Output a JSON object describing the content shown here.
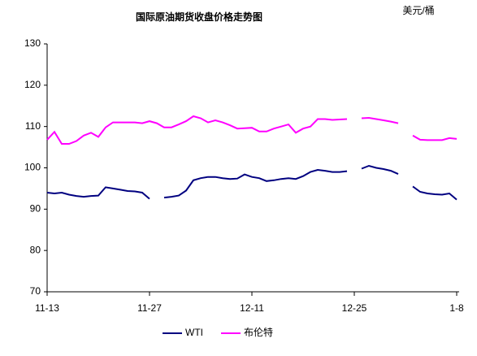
{
  "chart_data": {
    "type": "line",
    "title": "国际原油期货收盘价格走势图",
    "unit_label": "美元/桶",
    "categories": [
      "11-13",
      null,
      null,
      null,
      null,
      null,
      null,
      null,
      null,
      null,
      null,
      null,
      null,
      null,
      "11-27",
      null,
      null,
      null,
      null,
      null,
      null,
      null,
      null,
      null,
      null,
      null,
      null,
      null,
      "12-11",
      null,
      null,
      null,
      null,
      null,
      null,
      null,
      null,
      null,
      null,
      null,
      null,
      null,
      "12-25",
      null,
      null,
      null,
      null,
      null,
      null,
      null,
      null,
      null,
      null,
      null,
      null,
      null,
      "1-8"
    ],
    "series": [
      {
        "name": "WTI",
        "color": "#000080",
        "values": [
          94,
          93.8,
          94,
          93.5,
          93.2,
          93,
          93.2,
          93.3,
          95.3,
          95,
          94.7,
          94.4,
          94.3,
          94,
          92.5,
          null,
          92.8,
          93,
          93.3,
          94.5,
          97,
          97.5,
          97.8,
          97.8,
          97.5,
          97.3,
          97.4,
          98.4,
          97.8,
          97.5,
          96.8,
          97,
          97.3,
          97.5,
          97.3,
          98,
          99,
          99.5,
          99.3,
          99,
          99,
          99.2,
          null,
          99.8,
          100.5,
          100,
          99.7,
          99.3,
          98.5,
          null,
          95.5,
          94.2,
          93.8,
          93.6,
          93.5,
          93.8,
          92.3
        ]
      },
      {
        "name": "布伦特",
        "color": "#ff00ff",
        "values": [
          106.8,
          108.7,
          105.8,
          105.8,
          106.5,
          107.8,
          108.5,
          107.5,
          109.8,
          111,
          111,
          111,
          111,
          110.8,
          111.3,
          110.8,
          109.8,
          109.8,
          110.5,
          111.3,
          112.5,
          112,
          111,
          111.5,
          111,
          110.3,
          109.5,
          109.6,
          109.7,
          108.8,
          108.8,
          109.5,
          110,
          110.5,
          108.5,
          109.5,
          110,
          111.8,
          111.8,
          111.6,
          111.7,
          111.8,
          null,
          112,
          112.1,
          111.8,
          111.5,
          111.2,
          110.8,
          null,
          107.8,
          106.8,
          106.7,
          106.7,
          106.7,
          107.2,
          107
        ]
      }
    ],
    "ylim": [
      70,
      130
    ],
    "yticks": [
      70,
      80,
      90,
      100,
      110,
      120,
      130
    ],
    "grid": false,
    "legend": "bottom"
  }
}
